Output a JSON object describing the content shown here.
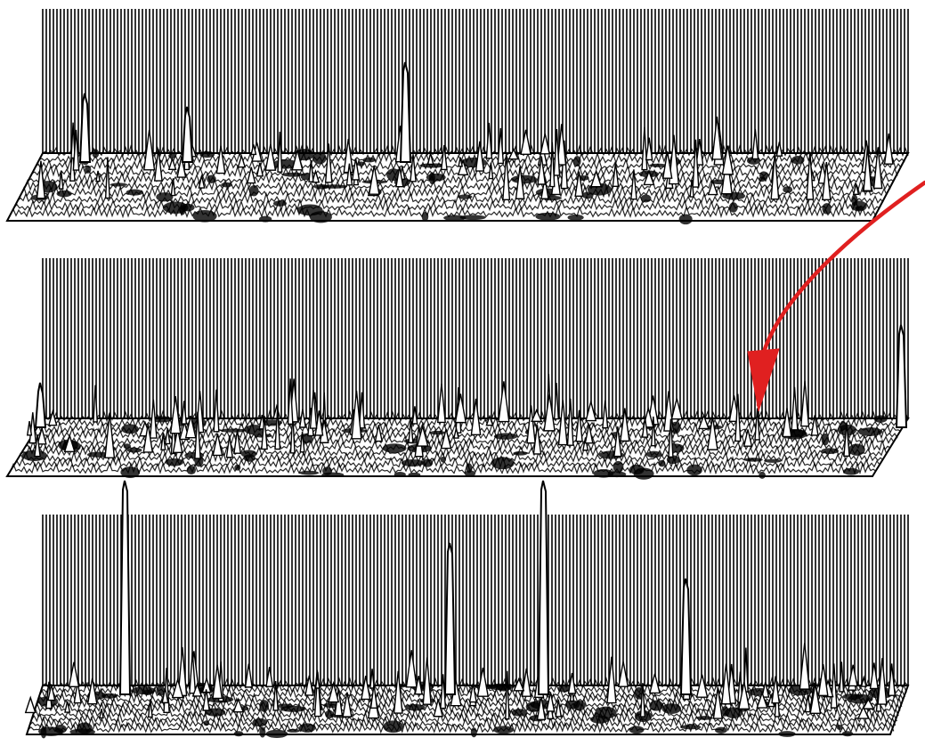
{
  "figure": {
    "panel_count": 3,
    "panels": [
      {
        "id": "top-surface-plot"
      },
      {
        "id": "middle-surface-plot"
      },
      {
        "id": "bottom-surface-plot"
      }
    ],
    "annotation": {
      "type": "arrow",
      "color": "#e02020",
      "target": "middle-surface-plot"
    },
    "colors": {
      "ink": "#000000",
      "background": "#ffffff",
      "arrow": "#e02020"
    }
  }
}
